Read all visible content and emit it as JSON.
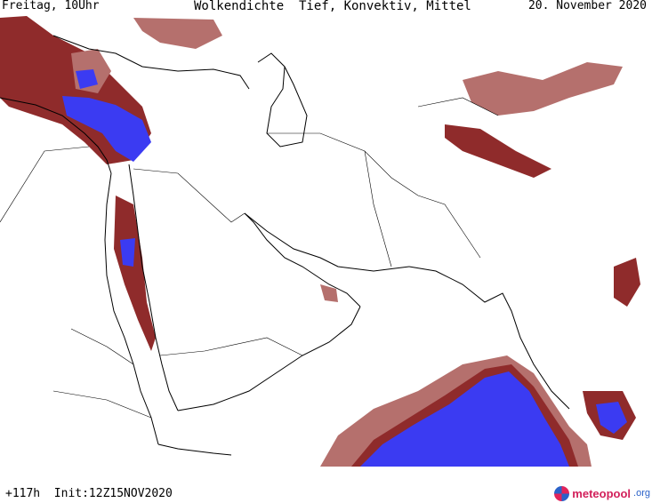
{
  "header": {
    "valid_time": "Freitag, 10Uhr",
    "title": "Wolkendichte  Tief, Konvektiv, Mittel",
    "date": "20. November 2020"
  },
  "footer": {
    "forecast_info": "+117h  Init:12Z15NOV2020",
    "logo_name": "meteopool",
    "logo_tld": ".org"
  },
  "colors": {
    "cloud_low": "#b5706d",
    "cloud_mid": "#8f2b2b",
    "cloud_high": "#3b3bf2",
    "coastline": "#000000",
    "border": "#000000",
    "background": "#ffffff"
  }
}
